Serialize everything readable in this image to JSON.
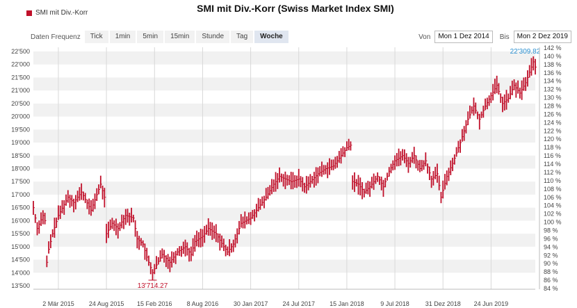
{
  "legend_label": "SMI mit Div.-Korr",
  "title": "SMI mit Div.-Korr (Swiss Market Index SMI)",
  "toolbar": {
    "frequency_label": "Daten Frequenz",
    "buttons": [
      "Tick",
      "1min",
      "5min",
      "15min",
      "Stunde",
      "Tag",
      "Woche"
    ],
    "active": "Woche"
  },
  "range": {
    "from_label": "Von",
    "from_value": "Mon 1 Dez 2014",
    "to_label": "Bis",
    "to_value": "Mon 2 Dez 2019"
  },
  "colors": {
    "series": "#c0102a",
    "last_label": "#2a8fd0",
    "band": "#f1f1f1"
  },
  "chart_data": {
    "type": "bar",
    "series_name": "SMI mit Div.-Korr",
    "x_range": [
      "2014-12-01",
      "2019-12-02"
    ],
    "y_left": {
      "min": 13500,
      "max": 22500,
      "ticks": [
        "13'500",
        "14'000",
        "14'500",
        "15'000",
        "15'500",
        "16'000",
        "16'500",
        "17'000",
        "17'500",
        "18'000",
        "18'500",
        "19'000",
        "19'500",
        "20'000",
        "20'500",
        "21'000",
        "21'500",
        "22'000",
        "22'500"
      ]
    },
    "y_right": {
      "min": 84,
      "max": 142,
      "ticks": [
        "84 %",
        "86 %",
        "88 %",
        "90 %",
        "92 %",
        "94 %",
        "96 %",
        "98 %",
        "100 %",
        "102 %",
        "104 %",
        "106 %",
        "108 %",
        "110 %",
        "112 %",
        "114 %",
        "116 %",
        "118 %",
        "120 %",
        "122 %",
        "124 %",
        "126 %",
        "128 %",
        "130 %",
        "132 %",
        "134 %",
        "136 %",
        "138 %",
        "140 %",
        "142 %"
      ]
    },
    "x_ticks": [
      {
        "date": "2015-03-02",
        "label": "2 Mär 2015"
      },
      {
        "date": "2015-08-24",
        "label": "24 Aug 2015"
      },
      {
        "date": "2016-02-15",
        "label": "15 Feb 2016"
      },
      {
        "date": "2016-08-08",
        "label": "8 Aug 2016"
      },
      {
        "date": "2017-01-30",
        "label": "30 Jan 2017"
      },
      {
        "date": "2017-07-24",
        "label": "24 Jul 2017"
      },
      {
        "date": "2018-01-15",
        "label": "15 Jan 2018"
      },
      {
        "date": "2018-07-09",
        "label": "9 Jul 2018"
      },
      {
        "date": "2018-12-31",
        "label": "31 Dez 2018"
      },
      {
        "date": "2019-06-24",
        "label": "24 Jun 2019"
      }
    ],
    "min_marker": {
      "date": "2016-02-08",
      "value": 13714.27,
      "label": "13'714.27"
    },
    "max_marker": {
      "date": "2019-11-25",
      "value": 22309.82,
      "label": "22'309.82"
    },
    "anchors": [
      [
        "2014-12-01",
        16500
      ],
      [
        "2014-12-15",
        15700
      ],
      [
        "2015-01-05",
        16200
      ],
      [
        "2015-01-12",
        16000
      ],
      [
        "2015-01-19",
        14400
      ],
      [
        "2015-01-26",
        14900
      ],
      [
        "2015-02-09",
        15500
      ],
      [
        "2015-03-02",
        16200
      ],
      [
        "2015-04-06",
        16900
      ],
      [
        "2015-04-27",
        16700
      ],
      [
        "2015-05-25",
        17100
      ],
      [
        "2015-06-29",
        16400
      ],
      [
        "2015-07-20",
        17000
      ],
      [
        "2015-08-03",
        17400
      ],
      [
        "2015-08-17",
        16900
      ],
      [
        "2015-08-24",
        15500
      ],
      [
        "2015-09-14",
        15900
      ],
      [
        "2015-10-05",
        15700
      ],
      [
        "2015-11-02",
        16200
      ],
      [
        "2015-11-30",
        16100
      ],
      [
        "2015-12-14",
        15300
      ],
      [
        "2016-01-04",
        15100
      ],
      [
        "2016-01-18",
        14600
      ],
      [
        "2016-02-08",
        14000
      ],
      [
        "2016-02-22",
        14300
      ],
      [
        "2016-03-14",
        14700
      ],
      [
        "2016-04-11",
        14400
      ],
      [
        "2016-05-09",
        14800
      ],
      [
        "2016-06-06",
        15000
      ],
      [
        "2016-06-27",
        14700
      ],
      [
        "2016-07-11",
        15200
      ],
      [
        "2016-08-08",
        15400
      ],
      [
        "2016-08-29",
        15700
      ],
      [
        "2016-09-26",
        15500
      ],
      [
        "2016-10-24",
        15000
      ],
      [
        "2016-11-07",
        14800
      ],
      [
        "2016-11-28",
        15100
      ],
      [
        "2016-12-26",
        15900
      ],
      [
        "2017-01-30",
        16100
      ],
      [
        "2017-02-27",
        16500
      ],
      [
        "2017-03-27",
        16900
      ],
      [
        "2017-04-24",
        17400
      ],
      [
        "2017-05-15",
        17700
      ],
      [
        "2017-06-05",
        17600
      ],
      [
        "2017-06-26",
        17500
      ],
      [
        "2017-07-24",
        17600
      ],
      [
        "2017-08-14",
        17300
      ],
      [
        "2017-09-04",
        17500
      ],
      [
        "2017-10-02",
        17800
      ],
      [
        "2017-10-30",
        18000
      ],
      [
        "2017-11-27",
        18100
      ],
      [
        "2017-12-25",
        18500
      ],
      [
        "2018-01-15",
        18800
      ],
      [
        "2018-01-29",
        18900
      ],
      [
        "2018-02-05",
        17500
      ],
      [
        "2018-02-26",
        17400
      ],
      [
        "2018-03-19",
        17100
      ],
      [
        "2018-04-09",
        17300
      ],
      [
        "2018-05-07",
        17700
      ],
      [
        "2018-05-28",
        17300
      ],
      [
        "2018-06-18",
        17900
      ],
      [
        "2018-07-09",
        18300
      ],
      [
        "2018-08-06",
        18500
      ],
      [
        "2018-08-27",
        18200
      ],
      [
        "2018-09-17",
        18500
      ],
      [
        "2018-10-08",
        18000
      ],
      [
        "2018-10-29",
        18300
      ],
      [
        "2018-11-19",
        17600
      ],
      [
        "2018-12-10",
        17800
      ],
      [
        "2018-12-24",
        16900
      ],
      [
        "2019-01-14",
        17700
      ],
      [
        "2019-02-04",
        18200
      ],
      [
        "2019-03-04",
        19000
      ],
      [
        "2019-04-01",
        19900
      ],
      [
        "2019-04-22",
        20400
      ],
      [
        "2019-05-13",
        19900
      ],
      [
        "2019-06-03",
        20400
      ],
      [
        "2019-06-24",
        20800
      ],
      [
        "2019-07-15",
        21200
      ],
      [
        "2019-08-05",
        20500
      ],
      [
        "2019-08-26",
        20700
      ],
      [
        "2019-09-16",
        21200
      ],
      [
        "2019-10-07",
        20900
      ],
      [
        "2019-10-28",
        21300
      ],
      [
        "2019-11-11",
        21700
      ],
      [
        "2019-11-25",
        22100
      ],
      [
        "2019-12-02",
        21900
      ]
    ]
  }
}
